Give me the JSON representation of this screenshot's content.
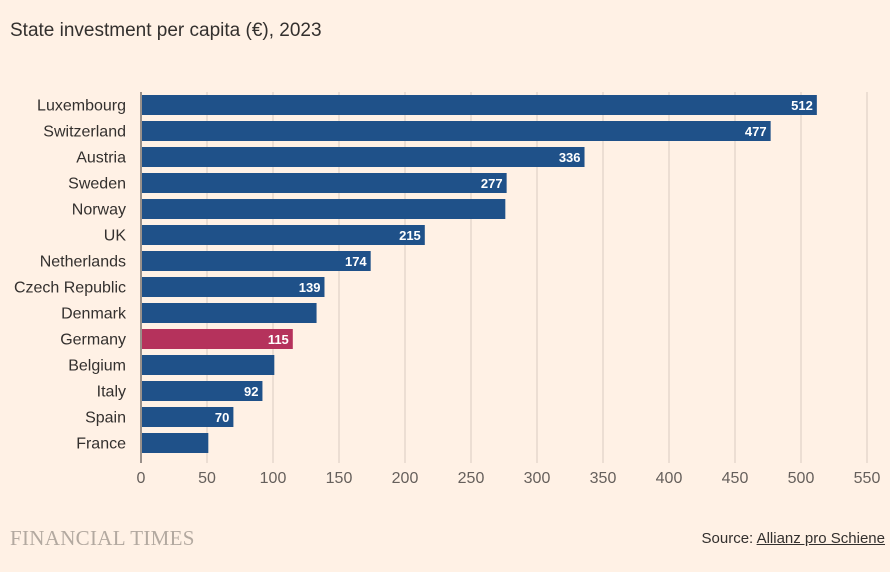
{
  "chart_data": {
    "type": "bar",
    "orientation": "horizontal",
    "title": "State investment per capita (€), 2023",
    "categories": [
      "Luxembourg",
      "Switzerland",
      "Austria",
      "Sweden",
      "Norway",
      "UK",
      "Netherlands",
      "Czech Republic",
      "Denmark",
      "Germany",
      "Belgium",
      "Italy",
      "Spain",
      "France"
    ],
    "values": [
      512,
      477,
      336,
      277,
      276,
      215,
      174,
      139,
      133,
      115,
      101,
      92,
      70,
      51
    ],
    "data_labels": [
      "512",
      "477",
      "336",
      "277",
      "",
      "215",
      "174",
      "139",
      "",
      "115",
      "",
      "92",
      "70",
      ""
    ],
    "highlight_category": "Germany",
    "xlim": [
      0,
      550
    ],
    "xticks": [
      0,
      50,
      100,
      150,
      200,
      250,
      300,
      350,
      400,
      450,
      500,
      550
    ],
    "grid": "vertical",
    "colors": {
      "bar": "#1f5189",
      "highlight": "#b5325c",
      "background": "#fff1e5",
      "grid": "#d9ccc1"
    }
  },
  "footer": {
    "brand": "FINANCIAL TIMES",
    "source_prefix": "Source: ",
    "source_name": "Allianz pro Schiene"
  }
}
